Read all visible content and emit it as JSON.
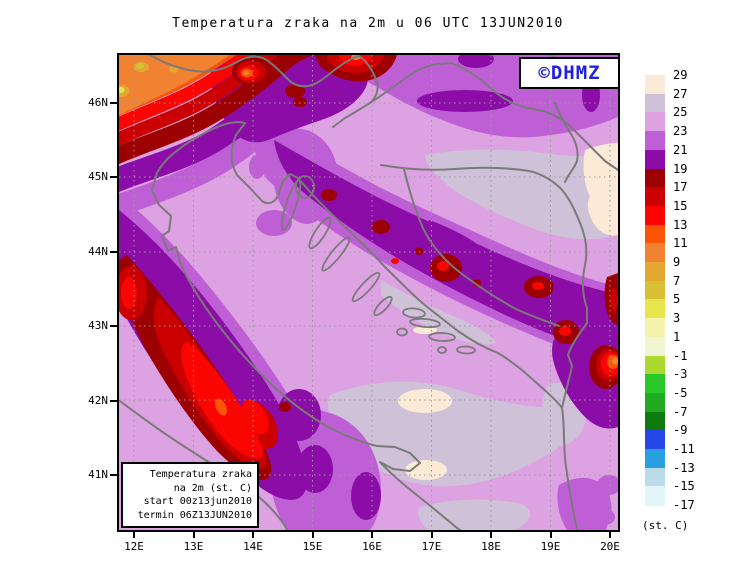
{
  "title": "Temperatura zraka na 2m u 06 UTC 13JUN2010",
  "watermark": {
    "text": "©DHMZ",
    "color": "#2222dd"
  },
  "info_box": {
    "lines": [
      "Temperatura zraka",
      "na 2m (st. C)",
      "start 00z13jun2010",
      "termin 06Z13JUN2010"
    ]
  },
  "axes": {
    "x_labels": [
      "12E",
      "13E",
      "14E",
      "15E",
      "16E",
      "17E",
      "18E",
      "19E",
      "20E"
    ],
    "y_labels": [
      "46N",
      "45N",
      "44N",
      "43N",
      "42N",
      "41N"
    ]
  },
  "colorbar": {
    "unit": "(st. C)",
    "tick_labels": [
      "29",
      "27",
      "25",
      "23",
      "21",
      "19",
      "17",
      "15",
      "13",
      "11",
      "9",
      "7",
      "5",
      "3",
      "1",
      "-1",
      "-3",
      "-5",
      "-7",
      "-9",
      "-11",
      "-13",
      "-15",
      "-17"
    ],
    "swatch_colors": [
      "#fbead5",
      "#cfc2d8",
      "#dda2e2",
      "#bf5fd6",
      "#8c0ca8",
      "#9c0000",
      "#cb0000",
      "#fb0500",
      "#fb5405",
      "#f08232",
      "#e2a832",
      "#d9bf36",
      "#e8e44c",
      "#f5f3ae",
      "#f2f5d2",
      "#abd92e",
      "#28c828",
      "#1faa1f",
      "#0d7a0d",
      "#2847e8",
      "#28a0e0",
      "#b9dce8",
      "#e2f6fa"
    ]
  }
}
